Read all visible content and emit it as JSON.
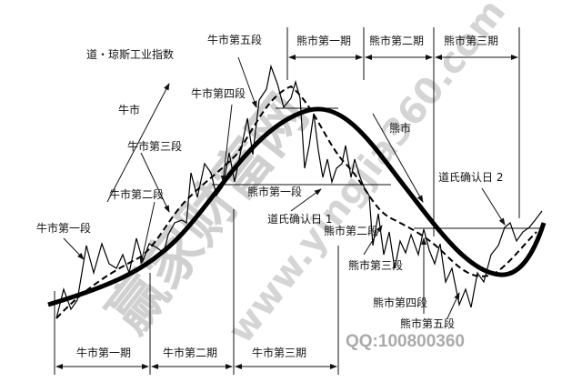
{
  "title": "道・琼斯工业指数",
  "bull": {
    "trend": "牛市",
    "legs": [
      "牛市第一段",
      "牛市第二段",
      "牛市第三段",
      "牛市第四段",
      "牛市第五段"
    ],
    "phases": [
      "牛市第一期",
      "牛市第二期",
      "牛市第三期"
    ]
  },
  "bear": {
    "trend": "熊市",
    "legs": [
      "熊市第一段",
      "熊市第二段",
      "熊市第三段",
      "熊市第四段",
      "熊市第五段"
    ],
    "phases": [
      "熊市第一期",
      "熊市第二期",
      "熊市第三期"
    ]
  },
  "confirm": [
    "道氏确认日 1",
    "道氏确认日 2"
  ],
  "watermark": {
    "name": "赢家财富网",
    "url": "www.yingjia360.com",
    "qq": "QQ:100800360"
  }
}
